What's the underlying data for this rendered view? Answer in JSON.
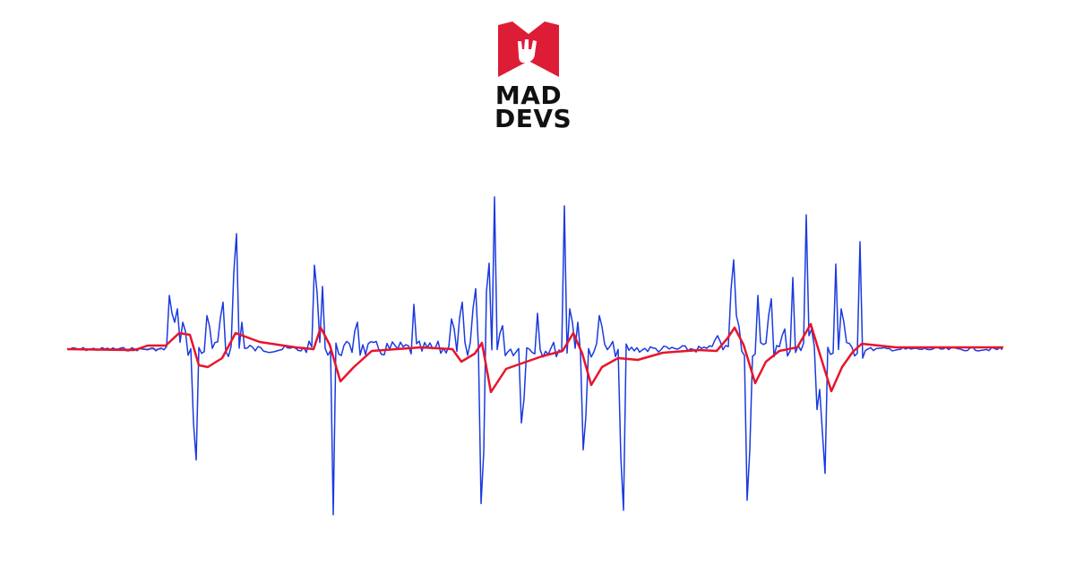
{
  "brand": {
    "line1": "MAD",
    "line2": "DEVS",
    "colors": {
      "red": "#dd1c36",
      "black": "#111111"
    }
  },
  "waveform": {
    "raw_color": "#1a3ae0",
    "smooth_color": "#e8152a",
    "baseline_color": "#e9aab8"
  }
}
